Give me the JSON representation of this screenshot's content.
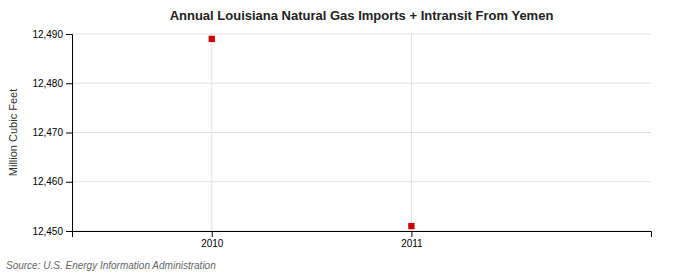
{
  "chart_data": {
    "type": "scatter",
    "title": "Annual Louisiana Natural Gas Imports + Intransit From Yemen",
    "ylabel": "Million Cubic Feet",
    "source": "Source: U.S. Energy Information Administration",
    "x": [
      2010,
      2011
    ],
    "values": [
      12489,
      12451
    ],
    "color": "#cc0000",
    "marker": "square",
    "xlim": [
      2009.3,
      2012.2
    ],
    "ylim": [
      12450,
      12490
    ],
    "xticks": [
      2010,
      2011
    ],
    "yticks": [
      {
        "value": 12450,
        "label": "12,450"
      },
      {
        "value": 12460,
        "label": "12,460"
      },
      {
        "value": 12470,
        "label": "12,470"
      },
      {
        "value": 12480,
        "label": "12,480"
      },
      {
        "value": 12490,
        "label": "12,490"
      }
    ],
    "grid": true
  }
}
